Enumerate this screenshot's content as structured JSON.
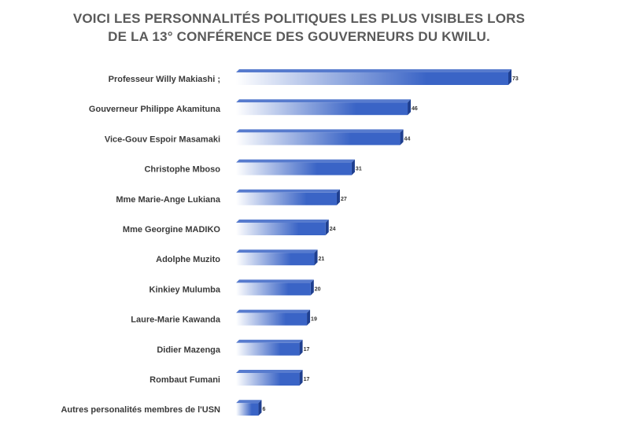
{
  "chart_data": {
    "type": "bar",
    "orientation": "horizontal",
    "title_line1": "VOICI LES PERSONNALITÉS POLITIQUES LES PLUS VISIBLES LORS",
    "title_line2": "DE LA 13° CONFÉRENCE DES GOUVERNEURS DU KWILU.",
    "categories": [
      "Professeur Willy Makiashi ;",
      "Gouverneur Philippe Akamituna",
      "Vice-Gouv Espoir Masamaki",
      "Christophe Mboso",
      "Mme  Marie-Ange Lukiana",
      "Mme Georgine MADIKO",
      "Adolphe Muzito",
      "Kinkiey Mulumba",
      "Laure-Marie Kawanda",
      "Didier Mazenga",
      "Rombaut Fumani",
      "Autres personalités membres de l'USN"
    ],
    "values": [
      73,
      46,
      44,
      31,
      27,
      24,
      21,
      20,
      19,
      17,
      17,
      6
    ],
    "value_labels": [
      "73",
      "46",
      "44",
      "31",
      "27",
      "24",
      "21",
      "20",
      "19",
      "17",
      "17",
      "6"
    ],
    "xlim": [
      0,
      73
    ],
    "grid": false,
    "legend": "none",
    "bar_color": "#3a64c6",
    "bar_color_dark": "#1f3f8f",
    "bar_color_light": "#ffffff"
  }
}
